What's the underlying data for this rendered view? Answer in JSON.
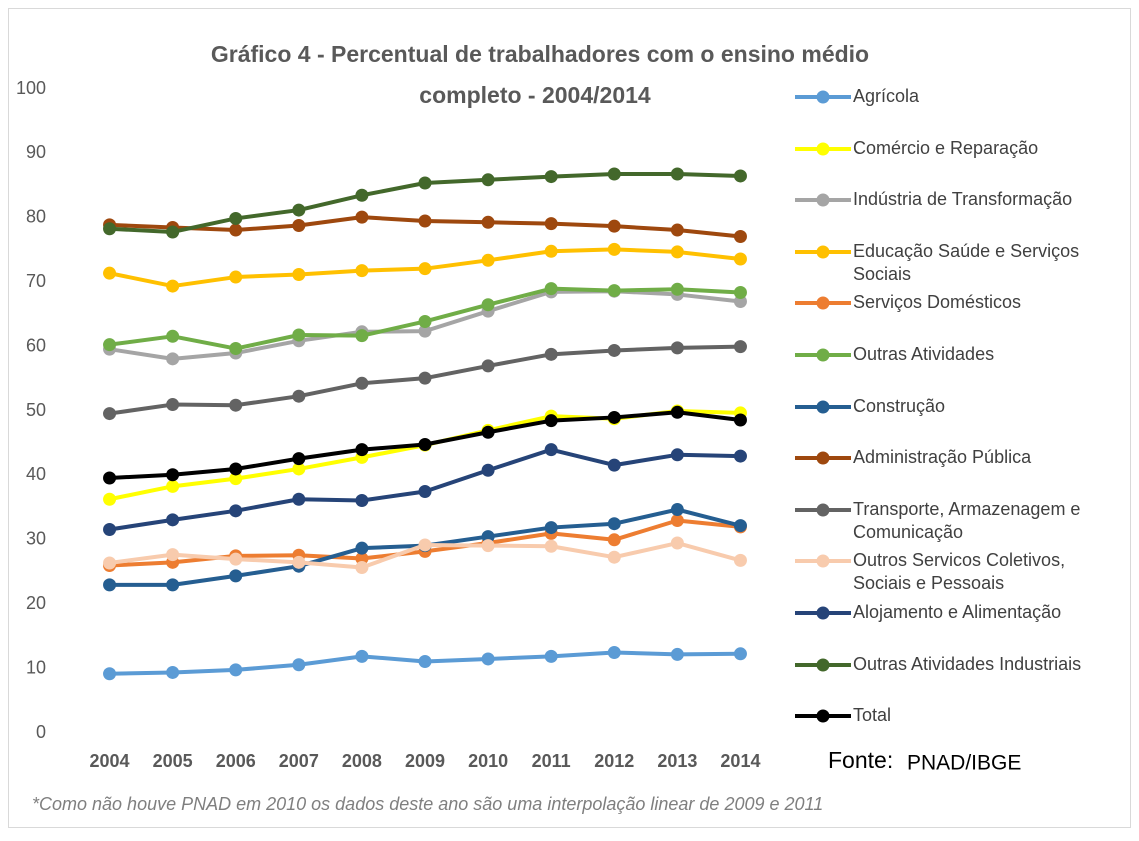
{
  "chart_data": {
    "type": "line",
    "title": "Gráfico 4 - Percentual de trabalhadores com o ensino médio",
    "title_line2": "completo - 2004/2014",
    "categories": [
      "2004",
      "2005",
      "2006",
      "2007",
      "2008",
      "2009",
      "2010",
      "2011",
      "2012",
      "2013",
      "2014"
    ],
    "ylim": [
      0,
      100
    ],
    "yticks": [
      0,
      10,
      20,
      30,
      40,
      50,
      60,
      70,
      80,
      90,
      100
    ],
    "grid": false,
    "series": [
      {
        "name": "Agrícola",
        "color": "#5b9bd5",
        "values": [
          9.2,
          9.4,
          9.8,
          10.6,
          11.9,
          11.1,
          11.5,
          11.9,
          12.5,
          12.2,
          12.3
        ]
      },
      {
        "name": "Comércio e Reparação",
        "color": "#ffff00",
        "values": [
          36.3,
          38.3,
          39.5,
          41,
          42.8,
          44.7,
          47,
          49.2,
          48.8,
          50,
          49.7
        ]
      },
      {
        "name": "Indústria de Transformação",
        "color": "#a5a5a5",
        "values": [
          59.6,
          58.1,
          59,
          60.9,
          62.3,
          62.4,
          65.5,
          68.5,
          68.6,
          68.1,
          67
        ]
      },
      {
        "name": "Educação Saúde e Serviços Sociais",
        "color": "#ffc000",
        "values": [
          71.4,
          69.4,
          70.8,
          71.2,
          71.8,
          72.1,
          73.4,
          74.8,
          75.1,
          74.7,
          73.6
        ]
      },
      {
        "name": "Serviços Domésticos",
        "color": "#ed7d31",
        "values": [
          26,
          26.5,
          27.5,
          27.6,
          27.1,
          28.2,
          29.5,
          31,
          30,
          33,
          32
        ]
      },
      {
        "name": "Outras Atividades",
        "color": "#70ad47",
        "values": [
          60.3,
          61.6,
          59.7,
          61.8,
          61.7,
          63.9,
          66.5,
          69,
          68.7,
          68.9,
          68.4
        ]
      },
      {
        "name": "Construção",
        "color": "#255e91",
        "values": [
          23,
          23,
          24.4,
          25.9,
          28.7,
          29.1,
          30.5,
          31.9,
          32.5,
          34.7,
          32.2
        ]
      },
      {
        "name": "Administração Pública",
        "color": "#9e480e",
        "values": [
          78.9,
          78.5,
          78.1,
          78.8,
          80.1,
          79.5,
          79.3,
          79.1,
          78.7,
          78.1,
          77.1
        ]
      },
      {
        "name": "Transporte, Armazenagem e Comunicação",
        "color": "#636363",
        "values": [
          49.6,
          51,
          50.9,
          52.3,
          54.3,
          55.1,
          57,
          58.8,
          59.4,
          59.8,
          60
        ]
      },
      {
        "name": "Outros Servicos Coletivos, Sociais e Pessoais",
        "color": "#f8cbad",
        "values": [
          26.4,
          27.7,
          27,
          26.5,
          25.7,
          29.2,
          29.1,
          29,
          27.3,
          29.5,
          26.8
        ]
      },
      {
        "name": "Alojamento e Alimentação",
        "color": "#264478",
        "values": [
          31.6,
          33.1,
          34.5,
          36.3,
          36.1,
          37.5,
          40.8,
          44,
          41.6,
          43.2,
          43
        ]
      },
      {
        "name": "Outras Atividades Industriais",
        "color": "#43682b",
        "values": [
          78.3,
          77.8,
          79.9,
          81.2,
          83.5,
          85.4,
          85.9,
          86.4,
          86.8,
          86.8,
          86.5
        ]
      },
      {
        "name": "Total",
        "color": "#000000",
        "values": [
          39.6,
          40.1,
          41,
          42.6,
          44,
          44.8,
          46.7,
          48.5,
          49,
          49.8,
          48.6
        ]
      }
    ],
    "source_label": "Fonte:",
    "source": "PNAD/IBGE",
    "note": "*Como não houve PNAD em 2010 os dados deste ano são uma interpolação linear de 2009 e 2011"
  }
}
